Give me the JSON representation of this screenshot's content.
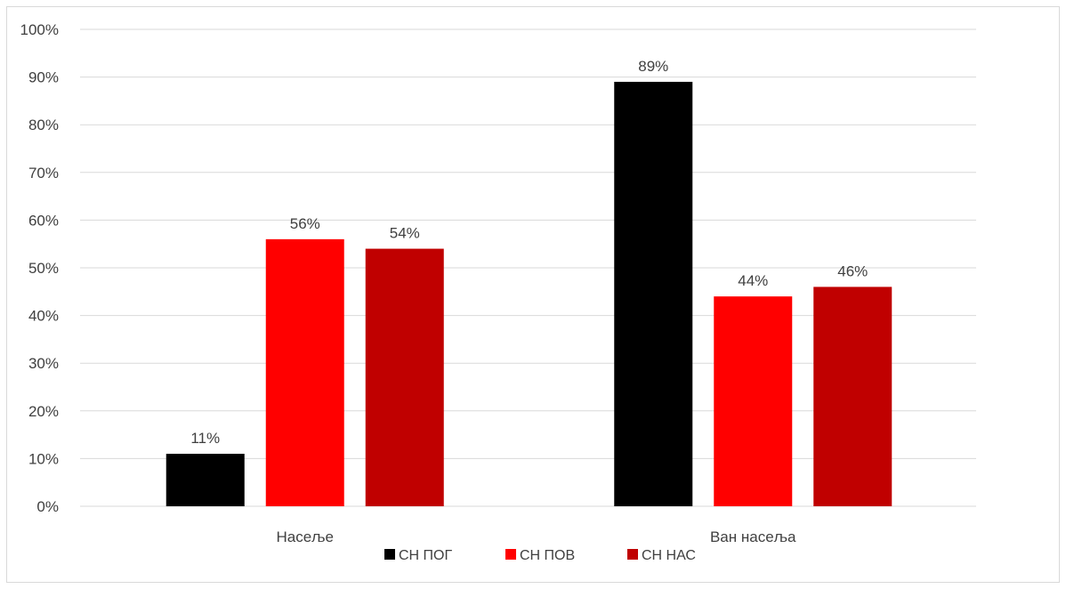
{
  "chart_data": {
    "type": "bar",
    "title": "",
    "xlabel": "",
    "ylabel": "",
    "categories": [
      "Насеље",
      "Ван насеља"
    ],
    "series": [
      {
        "name": "СН ПОГ",
        "values": [
          11,
          89
        ],
        "labels": [
          "11%",
          "89%"
        ],
        "color": "#000000"
      },
      {
        "name": "СН ПОВ",
        "values": [
          56,
          44
        ],
        "labels": [
          "56%",
          "44%"
        ],
        "color": "#ff0000"
      },
      {
        "name": "СН НАС",
        "values": [
          54,
          46
        ],
        "labels": [
          "54%",
          "46%"
        ],
        "color": "#c00000"
      }
    ],
    "ylim": [
      0,
      100
    ],
    "yticks": [
      0,
      10,
      20,
      30,
      40,
      50,
      60,
      70,
      80,
      90,
      100
    ],
    "ytick_labels": [
      "0%",
      "10%",
      "20%",
      "30%",
      "40%",
      "50%",
      "60%",
      "70%",
      "80%",
      "90%",
      "100%"
    ],
    "grid": true,
    "legend_position": "bottom",
    "colors": {
      "gridline": "#d9d9d9",
      "text": "#404040"
    }
  }
}
